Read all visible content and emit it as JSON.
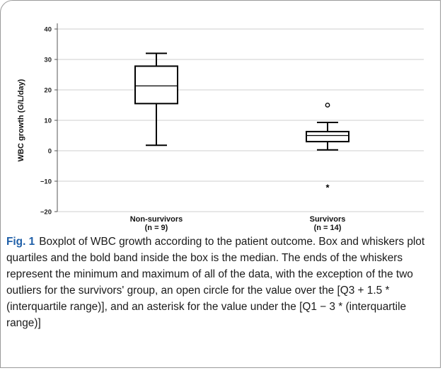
{
  "chart_data": {
    "type": "boxplot",
    "ylabel": "WBC growth (G/L/day)",
    "ylim": [
      -20,
      40
    ],
    "yticks": [
      40,
      30,
      20,
      10,
      0,
      -10,
      -20
    ],
    "grid": true,
    "categories": [
      {
        "name": "Non-survivors",
        "n_label": "(n = 9)",
        "min": 1.8,
        "q1": 15.5,
        "median": 21.3,
        "q3": 27.8,
        "max": 32.0,
        "outliers": []
      },
      {
        "name": "Survivors",
        "n_label": "(n = 14)",
        "min": 0.3,
        "q1": 3.0,
        "median": 5.0,
        "q3": 6.3,
        "max": 9.3,
        "outliers": [
          {
            "value": 15.0,
            "marker": "circle"
          },
          {
            "value": -12.0,
            "marker": "asterisk"
          }
        ]
      }
    ]
  },
  "caption": {
    "label": "Fig. 1",
    "text": "Boxplot of WBC growth according to the patient outcome. Box and whiskers plot quartiles and the bold band inside the box is the median. The ends of the whiskers represent the minimum and maximum of all of the data, with the exception of the two outliers for the survivors' group, an open circle for the value over the [Q3 + 1.5 * (interquartile range)], and an asterisk for the value under the [Q1 − 3 * (interquartile range)]"
  }
}
